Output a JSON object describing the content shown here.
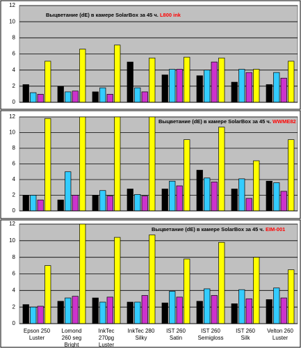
{
  "chart_data": [
    {
      "type": "bar",
      "title": "Выцветание (dE) в камере SolarBox за 45 ч.",
      "title_suffix": "L800 ink",
      "categories": [
        null,
        null,
        null,
        null,
        null,
        null,
        null,
        null
      ],
      "series": [
        {
          "color": "#000000",
          "values": [
            2.2,
            2.0,
            1.3,
            5.0,
            3.4,
            3.3,
            2.5,
            2.2
          ]
        },
        {
          "color": "#33ccff",
          "values": [
            1.2,
            1.3,
            1.8,
            1.8,
            4.1,
            4.0,
            4.1,
            3.7
          ]
        },
        {
          "color": "#cc33cc",
          "values": [
            1.0,
            1.4,
            1.0,
            1.3,
            4.1,
            5.0,
            3.7,
            3.0
          ]
        },
        {
          "color": "#ffff00",
          "values": [
            5.1,
            6.6,
            7.1,
            5.5,
            5.6,
            5.5,
            4.1,
            5.1
          ]
        }
      ],
      "ylim": [
        0,
        12
      ],
      "yticks": [
        0,
        2,
        4,
        6,
        8,
        10,
        12
      ],
      "grid": true
    },
    {
      "type": "bar",
      "title": "Выцветание (dE) в камере SolarBox за 45 ч.",
      "title_suffix": "WWME82",
      "categories": [
        null,
        null,
        null,
        null,
        null,
        null,
        null,
        null
      ],
      "series": [
        {
          "color": "#000000",
          "values": [
            2.0,
            1.4,
            2.0,
            2.8,
            2.8,
            5.2,
            2.8,
            3.8
          ]
        },
        {
          "color": "#33ccff",
          "values": [
            2.0,
            5.0,
            2.6,
            2.1,
            3.8,
            4.2,
            4.1,
            3.6
          ]
        },
        {
          "color": "#cc33cc",
          "values": [
            1.4,
            2.0,
            1.9,
            1.9,
            3.2,
            3.7,
            1.6,
            2.5
          ]
        },
        {
          "color": "#ffff00",
          "values": [
            11.8,
            12,
            12,
            12,
            9.1,
            10.7,
            6.4,
            9.1
          ]
        }
      ],
      "ylim": [
        0,
        12
      ],
      "yticks": [
        0,
        2,
        4,
        6,
        8,
        10,
        12
      ],
      "grid": true
    },
    {
      "type": "bar",
      "title": "Выцветание (dE) в камере SolarBox за 45 ч.",
      "title_suffix": "EIM-001",
      "categories": [
        "Epson 250 Luster",
        "Lomond 260 seg Bright",
        "InkTec 270pg Luster",
        "InkTec 280 Silky",
        "IST 260 Satin",
        "IST 260 Semigloss",
        "IST 260 Silk",
        "Velton 260 Luster"
      ],
      "series": [
        {
          "color": "#000000",
          "values": [
            2.3,
            2.7,
            3.1,
            2.6,
            2.5,
            2.7,
            2.4,
            2.9
          ]
        },
        {
          "color": "#33ccff",
          "values": [
            2.0,
            3.1,
            2.6,
            2.6,
            3.9,
            4.2,
            4.1,
            4.3
          ]
        },
        {
          "color": "#cc33cc",
          "values": [
            2.1,
            3.3,
            3.2,
            3.4,
            3.2,
            3.4,
            3.0,
            3.1
          ]
        },
        {
          "color": "#ffff00",
          "values": [
            7.0,
            12,
            10.4,
            10.7,
            7.8,
            9.8,
            8.0,
            6.5
          ]
        }
      ],
      "ylim": [
        0,
        12
      ],
      "yticks": [
        0,
        2,
        4,
        6,
        8,
        10,
        12
      ],
      "grid": true
    }
  ]
}
